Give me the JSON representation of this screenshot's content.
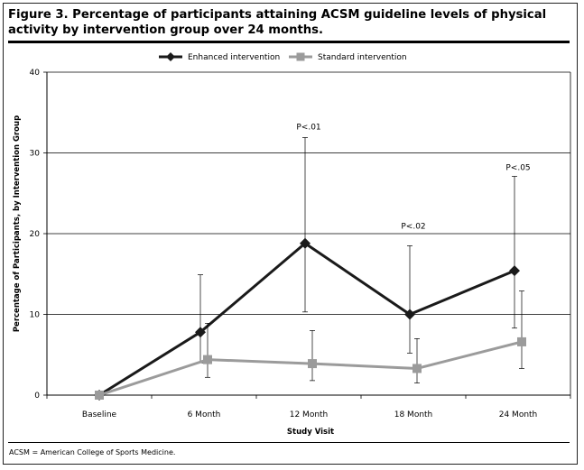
{
  "figure": {
    "title": "Figure 3. Percentage of participants attaining ACSM guideline levels of physical activity by intervention group over 24 months.",
    "footnote": "ACSM = American College of Sports Medicine."
  },
  "chart_data": {
    "type": "line",
    "title": "",
    "xlabel": "Study Visit",
    "ylabel": "Percentage of Participants, by Intervention Group",
    "categories": [
      "Baseline",
      "6 Month",
      "12 Month",
      "18 Month",
      "24 Month"
    ],
    "ylim": [
      0,
      40
    ],
    "yticks": [
      0,
      10,
      20,
      30,
      40
    ],
    "grid": true,
    "legend_position": "top-center",
    "series": [
      {
        "name": "Enhanced intervention",
        "color": "#1a1a1a",
        "marker": "diamond",
        "values": [
          0,
          7.8,
          18.8,
          10.0,
          15.4
        ],
        "err_low": [
          null,
          4.0,
          10.3,
          5.2,
          8.3
        ],
        "err_high": [
          null,
          14.9,
          31.9,
          18.5,
          27.1
        ]
      },
      {
        "name": "Standard intervention",
        "color": "#9b9b9b",
        "marker": "square",
        "values": [
          0,
          4.4,
          3.9,
          3.3,
          6.6
        ],
        "err_low": [
          null,
          2.2,
          1.8,
          1.5,
          3.3
        ],
        "err_high": [
          null,
          8.9,
          8.0,
          7.0,
          12.9
        ]
      }
    ],
    "annotations": [
      {
        "text": "P<.01",
        "category": "12 Month",
        "y": 32.9
      },
      {
        "text": "P<.02",
        "category": "18 Month",
        "y": 20.6
      },
      {
        "text": "P<.05",
        "category": "24 Month",
        "y": 27.9
      }
    ]
  }
}
